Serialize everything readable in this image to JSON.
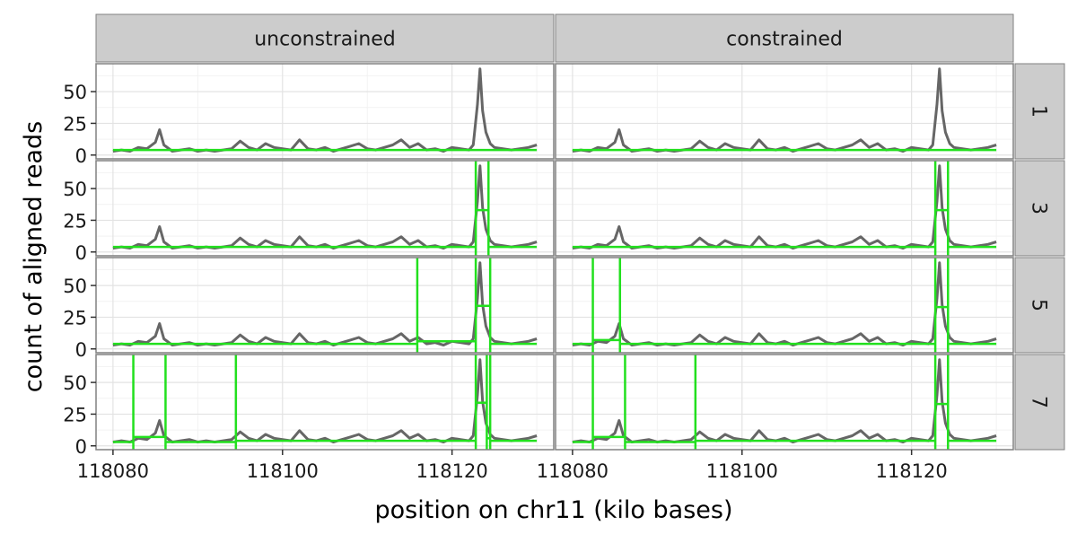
{
  "chart_data": {
    "type": "line",
    "xlabel": "position on chr11 (kilo bases)",
    "ylabel": "count of aligned reads",
    "facet_columns": [
      "unconstrained",
      "constrained"
    ],
    "facet_rows": [
      "1",
      "3",
      "5",
      "7"
    ],
    "xlim": [
      118078,
      118132
    ],
    "ylim": [
      -3,
      72
    ],
    "x_ticks": [
      118080,
      118100,
      118120
    ],
    "y_ticks": [
      0,
      25,
      50
    ],
    "grid": true,
    "coverage_color": "#666666",
    "segment_color": "#22e01e",
    "coverage_profile": {
      "x": [
        118080,
        118081,
        118082,
        118083,
        118084,
        118085,
        118085.5,
        118086,
        118087,
        118088,
        118089,
        118090,
        118091,
        118092,
        118093,
        118094,
        118095,
        118096,
        118097,
        118098,
        118099,
        118100,
        118101,
        118102,
        118103,
        118104,
        118105,
        118106,
        118107,
        118108,
        118109,
        118110,
        118111,
        118112,
        118113,
        118114,
        118115,
        118116,
        118117,
        118118,
        118119,
        118120,
        118121,
        118122,
        118122.5,
        118123,
        118123.3,
        118123.6,
        118124,
        118124.5,
        118125,
        118126,
        118127,
        118128,
        118129,
        118130
      ],
      "y": [
        3,
        4,
        3,
        6,
        5,
        10,
        20,
        8,
        3,
        4,
        5,
        3,
        4,
        3,
        4,
        5,
        11,
        6,
        4,
        9,
        6,
        5,
        4,
        12,
        5,
        4,
        6,
        3,
        5,
        7,
        9,
        5,
        4,
        6,
        8,
        12,
        6,
        9,
        4,
        5,
        3,
        6,
        5,
        4,
        8,
        40,
        68,
        35,
        18,
        9,
        6,
        5,
        4,
        5,
        6,
        8
      ]
    },
    "panels": [
      {
        "column": "unconstrained",
        "row": "1",
        "segments": [
          {
            "x": [
              118080,
              118130
            ],
            "y": 4
          }
        ],
        "breakpoints": []
      },
      {
        "column": "constrained",
        "row": "1",
        "segments": [
          {
            "x": [
              118080,
              118130
            ],
            "y": 4
          }
        ],
        "breakpoints": []
      },
      {
        "column": "unconstrained",
        "row": "3",
        "segments": [
          {
            "x": [
              118080,
              118122.8
            ],
            "y": 4
          },
          {
            "x": [
              118122.8,
              118124.3
            ],
            "y": 33
          },
          {
            "x": [
              118124.3,
              118130
            ],
            "y": 4
          }
        ],
        "breakpoints": [
          118122.8,
          118124.3
        ]
      },
      {
        "column": "constrained",
        "row": "3",
        "segments": [
          {
            "x": [
              118080,
              118122.8
            ],
            "y": 4
          },
          {
            "x": [
              118122.8,
              118124.3
            ],
            "y": 33
          },
          {
            "x": [
              118124.3,
              118130
            ],
            "y": 4
          }
        ],
        "breakpoints": [
          118122.8,
          118124.3
        ]
      },
      {
        "column": "unconstrained",
        "row": "5",
        "segments": [
          {
            "x": [
              118080,
              118115.9
            ],
            "y": 4
          },
          {
            "x": [
              118115.9,
              118122.8
            ],
            "y": 6
          },
          {
            "x": [
              118122.8,
              118124.5
            ],
            "y": 34
          },
          {
            "x": [
              118124.5,
              118130
            ],
            "y": 4
          }
        ],
        "breakpoints": [
          118115.9,
          118122.8,
          118124.5
        ]
      },
      {
        "column": "constrained",
        "row": "5",
        "segments": [
          {
            "x": [
              118080,
              118082.4
            ],
            "y": 4
          },
          {
            "x": [
              118082.4,
              118085.6
            ],
            "y": 7
          },
          {
            "x": [
              118085.6,
              118122.8
            ],
            "y": 4
          },
          {
            "x": [
              118122.8,
              118124.3
            ],
            "y": 33
          },
          {
            "x": [
              118124.3,
              118130
            ],
            "y": 4
          }
        ],
        "breakpoints": [
          118082.4,
          118085.6,
          118122.8,
          118124.3
        ]
      },
      {
        "column": "unconstrained",
        "row": "7",
        "segments": [
          {
            "x": [
              118080,
              118082.4
            ],
            "y": 3
          },
          {
            "x": [
              118082.4,
              118086.2
            ],
            "y": 7
          },
          {
            "x": [
              118086.2,
              118094.5
            ],
            "y": 3
          },
          {
            "x": [
              118094.5,
              118122.8
            ],
            "y": 4
          },
          {
            "x": [
              118122.8,
              118124.1
            ],
            "y": 34
          },
          {
            "x": [
              118124.1,
              118124.5
            ],
            "y": 6
          },
          {
            "x": [
              118124.5,
              118130
            ],
            "y": 4
          }
        ],
        "breakpoints": [
          118082.4,
          118086.2,
          118094.5,
          118122.8,
          118124.1,
          118124.5
        ]
      },
      {
        "column": "constrained",
        "row": "7",
        "segments": [
          {
            "x": [
              118080,
              118082.4
            ],
            "y": 3
          },
          {
            "x": [
              118082.4,
              118086.2
            ],
            "y": 7
          },
          {
            "x": [
              118086.2,
              118094.5
            ],
            "y": 3
          },
          {
            "x": [
              118094.5,
              118122.8
            ],
            "y": 4
          },
          {
            "x": [
              118122.8,
              118124.3
            ],
            "y": 33
          },
          {
            "x": [
              118124.3,
              118130
            ],
            "y": 4
          }
        ],
        "breakpoints": [
          118082.4,
          118086.2,
          118094.5,
          118122.8,
          118124.3
        ]
      }
    ]
  }
}
